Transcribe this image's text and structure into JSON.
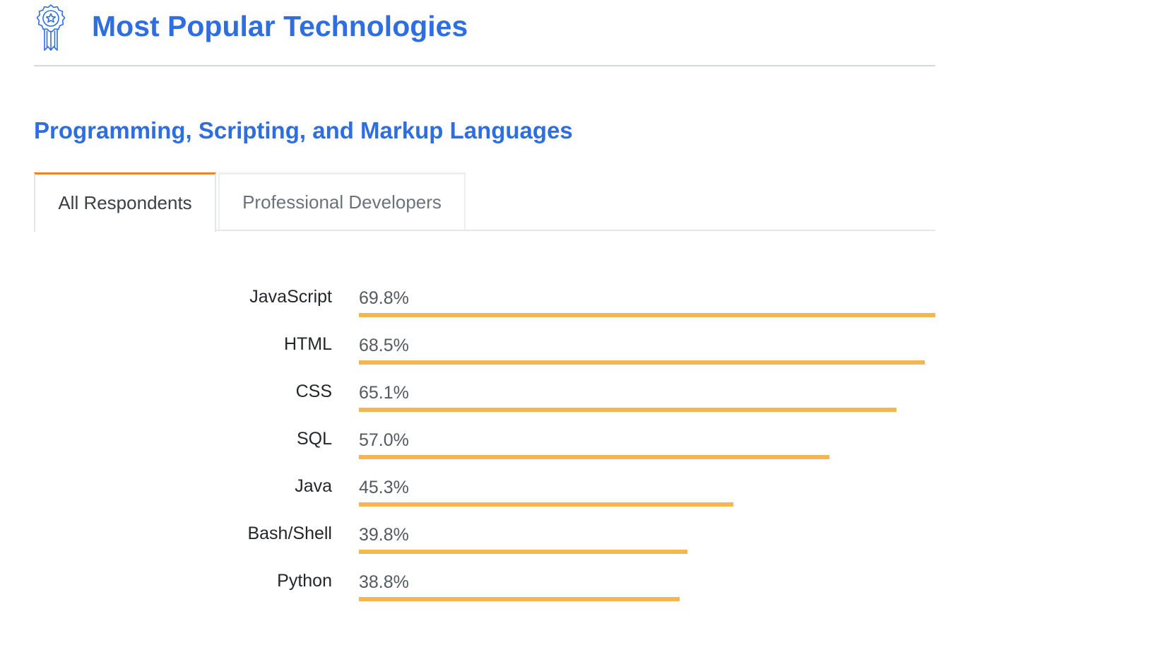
{
  "header": {
    "title": "Most Popular Technologies"
  },
  "section": {
    "title": "Programming, Scripting, and Markup Languages"
  },
  "tabs": [
    {
      "label": "All Respondents",
      "active": true
    },
    {
      "label": "Professional Developers",
      "active": false
    }
  ],
  "colors": {
    "title": "#2f6ee0",
    "bar": "#f5b651",
    "active_tab_accent": "#f48024"
  },
  "icons": {
    "header": "award-ribbon-star-icon"
  },
  "chart_data": {
    "type": "bar",
    "orientation": "horizontal",
    "title": "",
    "categories": [
      "JavaScript",
      "HTML",
      "CSS",
      "SQL",
      "Java",
      "Bash/Shell",
      "Python"
    ],
    "values": [
      69.8,
      68.5,
      65.1,
      57.0,
      45.3,
      39.8,
      38.8
    ],
    "value_labels": [
      "69.8%",
      "68.5%",
      "65.1%",
      "57.0%",
      "45.3%",
      "39.8%",
      "38.8%"
    ],
    "unit": "%",
    "xlim": [
      0,
      69.8
    ],
    "grid": false,
    "legend": false
  }
}
